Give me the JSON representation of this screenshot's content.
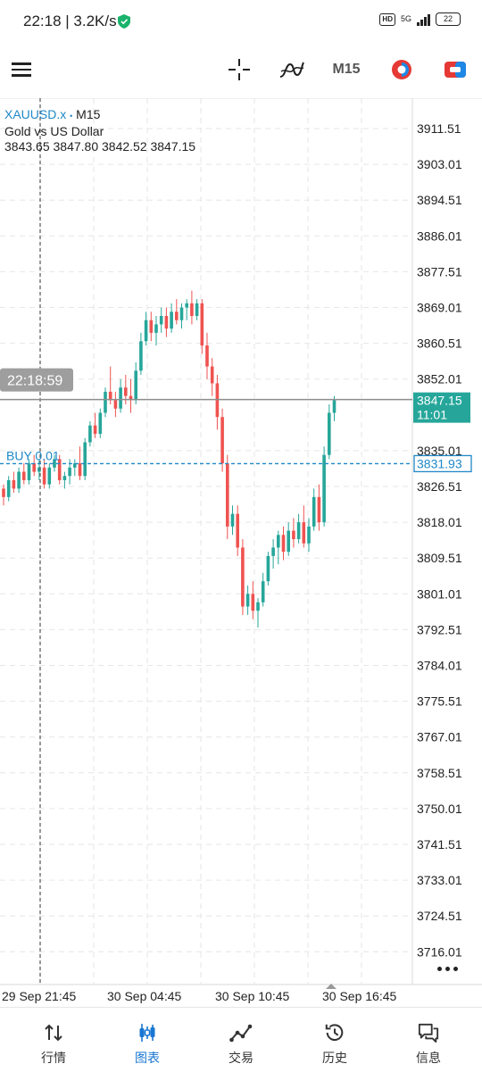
{
  "status_bar": {
    "time": "22:18 | 3.2K/s",
    "hd": "HD",
    "network": "5G",
    "battery": "22"
  },
  "toolbar": {
    "timeframe": "M15",
    "icons": [
      "menu-icon",
      "crosshair-icon",
      "indicators-icon",
      "timeframe",
      "one-click-trading-icon",
      "trade-icon"
    ]
  },
  "chart_info": {
    "symbol": "XAUUSD.x",
    "dot": "•",
    "timeframe": "M15",
    "description": "Gold vs US Dollar",
    "ohlc": "3843.65 3847.80 3842.52 3847.15"
  },
  "overlays": {
    "crosshair_time": "22:18:59",
    "buy_label": "BUY 0.01",
    "current_price": "3847.15",
    "countdown": "11:01",
    "buy_price": "3831.93"
  },
  "colors": {
    "bull": "#26a69a",
    "bear": "#ef5350",
    "buy_line": "#1e88c7",
    "accent": "#1976d2"
  },
  "chart_data": {
    "type": "candlestick",
    "symbol": "XAUUSD.x",
    "timeframe": "M15",
    "y_ticks": [
      "3911.51",
      "3903.01",
      "3894.51",
      "3886.01",
      "3877.51",
      "3869.01",
      "3860.51",
      "3852.01",
      "3835.01",
      "3826.51",
      "3818.01",
      "3809.51",
      "3801.01",
      "3792.51",
      "3784.01",
      "3775.51",
      "3767.01",
      "3758.51",
      "3750.01",
      "3741.51",
      "3733.01",
      "3724.51",
      "3716.01"
    ],
    "x_ticks": [
      "29 Sep 21:45",
      "30 Sep 04:45",
      "30 Sep 10:45",
      "30 Sep 16:45"
    ],
    "ylim": [
      3712,
      3916
    ],
    "current_price": 3847.15,
    "buy_price": 3831.93,
    "candles": [
      [
        3826,
        3827,
        3822,
        3824
      ],
      [
        3824,
        3829,
        3823,
        3828
      ],
      [
        3828,
        3830,
        3825,
        3826
      ],
      [
        3826,
        3831,
        3825,
        3830
      ],
      [
        3830,
        3832,
        3827,
        3828
      ],
      [
        3828,
        3833,
        3827,
        3832
      ],
      [
        3832,
        3834,
        3829,
        3830
      ],
      [
        3830,
        3833,
        3828,
        3831
      ],
      [
        3831,
        3833,
        3826,
        3827
      ],
      [
        3827,
        3832,
        3826,
        3831
      ],
      [
        3831,
        3834,
        3830,
        3833
      ],
      [
        3833,
        3834,
        3827,
        3828
      ],
      [
        3828,
        3830,
        3826,
        3829
      ],
      [
        3829,
        3833,
        3827,
        3831
      ],
      [
        3831,
        3833,
        3829,
        3832
      ],
      [
        3832,
        3836,
        3828,
        3829
      ],
      [
        3829,
        3838,
        3828,
        3837
      ],
      [
        3837,
        3842,
        3836,
        3841
      ],
      [
        3841,
        3844,
        3838,
        3839
      ],
      [
        3839,
        3845,
        3838,
        3844
      ],
      [
        3844,
        3850,
        3843,
        3849
      ],
      [
        3849,
        3855,
        3846,
        3847
      ],
      [
        3847,
        3849,
        3843,
        3845
      ],
      [
        3845,
        3852,
        3844,
        3850
      ],
      [
        3850,
        3853,
        3846,
        3848
      ],
      [
        3848,
        3852,
        3844,
        3847
      ],
      [
        3847,
        3856,
        3846,
        3854
      ],
      [
        3854,
        3863,
        3853,
        3861
      ],
      [
        3861,
        3868,
        3860,
        3866
      ],
      [
        3866,
        3868,
        3861,
        3863
      ],
      [
        3863,
        3867,
        3860,
        3865
      ],
      [
        3865,
        3869,
        3863,
        3867
      ],
      [
        3867,
        3869,
        3862,
        3864
      ],
      [
        3864,
        3870,
        3863,
        3868
      ],
      [
        3868,
        3871,
        3865,
        3866
      ],
      [
        3866,
        3870,
        3864,
        3869
      ],
      [
        3869,
        3871,
        3866,
        3870
      ],
      [
        3870,
        3873,
        3865,
        3867
      ],
      [
        3867,
        3871,
        3866,
        3870
      ],
      [
        3870,
        3871,
        3858,
        3860
      ],
      [
        3860,
        3863,
        3852,
        3855
      ],
      [
        3855,
        3857,
        3848,
        3851
      ],
      [
        3851,
        3853,
        3840,
        3843
      ],
      [
        3843,
        3845,
        3830,
        3832
      ],
      [
        3832,
        3834,
        3814,
        3817
      ],
      [
        3817,
        3822,
        3815,
        3820
      ],
      [
        3820,
        3822,
        3810,
        3812
      ],
      [
        3812,
        3814,
        3796,
        3798
      ],
      [
        3798,
        3803,
        3796,
        3801
      ],
      [
        3801,
        3804,
        3795,
        3797
      ],
      [
        3797,
        3800,
        3793,
        3799
      ],
      [
        3799,
        3806,
        3798,
        3804
      ],
      [
        3804,
        3811,
        3803,
        3810
      ],
      [
        3810,
        3814,
        3807,
        3812
      ],
      [
        3812,
        3816,
        3808,
        3815
      ],
      [
        3815,
        3817,
        3809,
        3811
      ],
      [
        3811,
        3818,
        3810,
        3816
      ],
      [
        3816,
        3819,
        3812,
        3814
      ],
      [
        3814,
        3820,
        3813,
        3818
      ],
      [
        3818,
        3822,
        3812,
        3813
      ],
      [
        3813,
        3819,
        3811,
        3817
      ],
      [
        3817,
        3826,
        3816,
        3824
      ],
      [
        3824,
        3827,
        3816,
        3818
      ],
      [
        3818,
        3836,
        3817,
        3834
      ],
      [
        3834,
        3846,
        3833,
        3844
      ],
      [
        3844,
        3848,
        3842,
        3847
      ]
    ]
  },
  "bottom_nav": [
    {
      "label": "行情",
      "icon": "quotes-icon"
    },
    {
      "label": "图表",
      "icon": "chart-icon"
    },
    {
      "label": "交易",
      "icon": "trade-icon"
    },
    {
      "label": "历史",
      "icon": "history-icon"
    },
    {
      "label": "信息",
      "icon": "messages-icon"
    }
  ]
}
